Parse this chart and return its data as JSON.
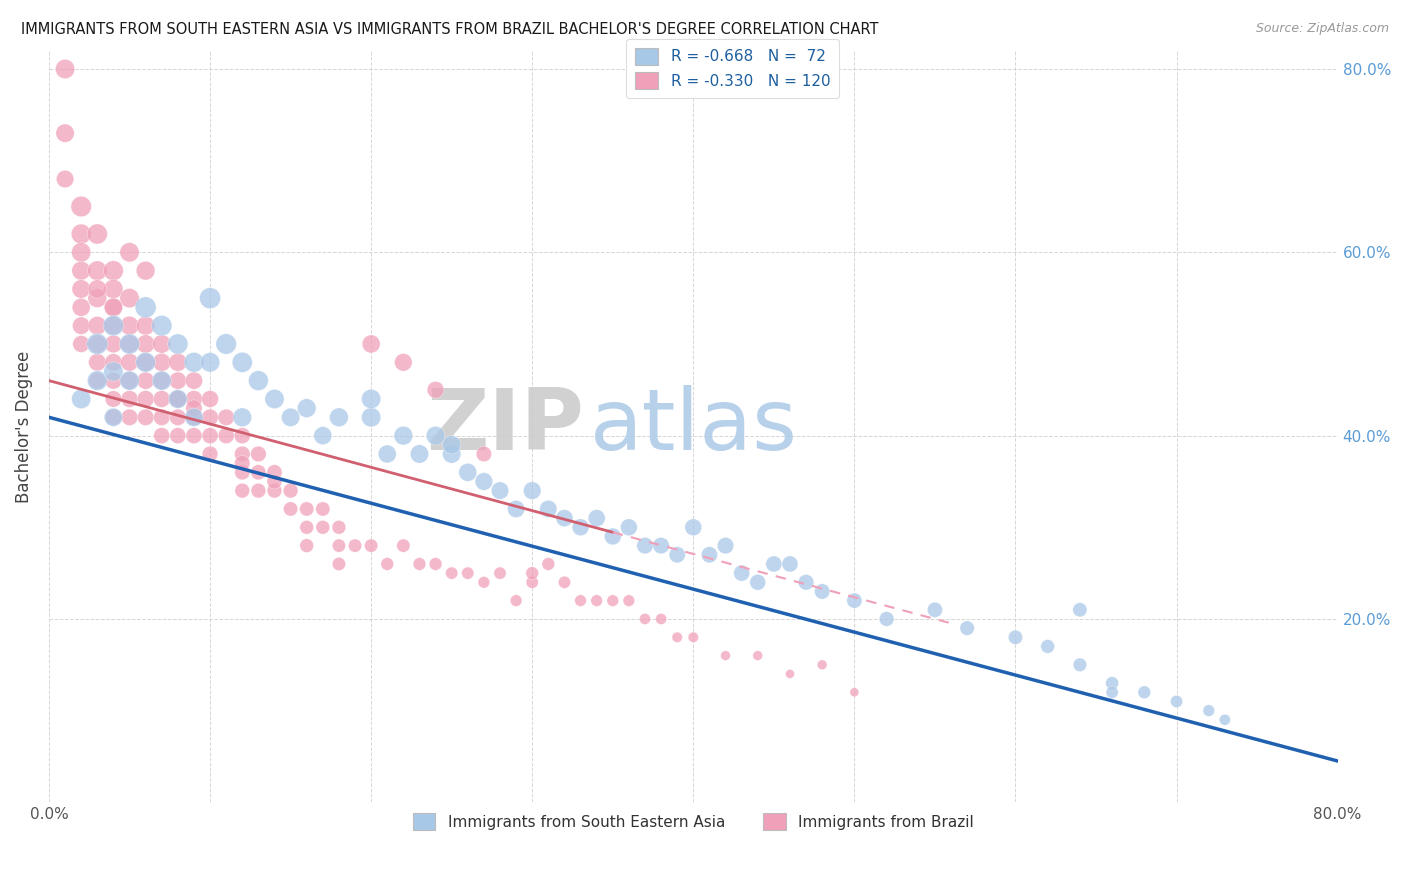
{
  "title": "IMMIGRANTS FROM SOUTH EASTERN ASIA VS IMMIGRANTS FROM BRAZIL BACHELOR'S DEGREE CORRELATION CHART",
  "source": "Source: ZipAtlas.com",
  "ylabel": "Bachelor's Degree",
  "watermark_zip": "ZIP",
  "watermark_atlas": "atlas",
  "legend_blue_label": "R = -0.668   N =  72",
  "legend_pink_label": "R = -0.330   N = 120",
  "legend_label_blue": "Immigrants from South Eastern Asia",
  "legend_label_pink": "Immigrants from Brazil",
  "blue_color": "#A8C8E8",
  "pink_color": "#F0A0B8",
  "trendline_blue_color": "#2060B0",
  "trendline_pink_solid_color": "#D06070",
  "trendline_pink_dash_color": "#F0A0B8",
  "xlim": [
    0.0,
    0.8
  ],
  "ylim": [
    0.0,
    0.82
  ],
  "blue_x": [
    0.02,
    0.03,
    0.03,
    0.04,
    0.04,
    0.04,
    0.05,
    0.05,
    0.06,
    0.06,
    0.07,
    0.07,
    0.08,
    0.08,
    0.09,
    0.09,
    0.1,
    0.1,
    0.11,
    0.12,
    0.12,
    0.13,
    0.14,
    0.15,
    0.16,
    0.17,
    0.18,
    0.2,
    0.21,
    0.22,
    0.23,
    0.24,
    0.25,
    0.26,
    0.27,
    0.28,
    0.29,
    0.3,
    0.31,
    0.32,
    0.33,
    0.34,
    0.35,
    0.36,
    0.37,
    0.38,
    0.39,
    0.4,
    0.41,
    0.42,
    0.43,
    0.44,
    0.45,
    0.46,
    0.47,
    0.48,
    0.5,
    0.52,
    0.55,
    0.57,
    0.6,
    0.62,
    0.64,
    0.66,
    0.68,
    0.7,
    0.72,
    0.73,
    0.64,
    0.66,
    0.2,
    0.25
  ],
  "blue_y": [
    0.44,
    0.5,
    0.46,
    0.52,
    0.47,
    0.42,
    0.5,
    0.46,
    0.54,
    0.48,
    0.52,
    0.46,
    0.5,
    0.44,
    0.48,
    0.42,
    0.55,
    0.48,
    0.5,
    0.48,
    0.42,
    0.46,
    0.44,
    0.42,
    0.43,
    0.4,
    0.42,
    0.42,
    0.38,
    0.4,
    0.38,
    0.4,
    0.38,
    0.36,
    0.35,
    0.34,
    0.32,
    0.34,
    0.32,
    0.31,
    0.3,
    0.31,
    0.29,
    0.3,
    0.28,
    0.28,
    0.27,
    0.3,
    0.27,
    0.28,
    0.25,
    0.24,
    0.26,
    0.26,
    0.24,
    0.23,
    0.22,
    0.2,
    0.21,
    0.19,
    0.18,
    0.17,
    0.15,
    0.13,
    0.12,
    0.11,
    0.1,
    0.09,
    0.21,
    0.12,
    0.44,
    0.39
  ],
  "blue_s": [
    55,
    65,
    58,
    62,
    55,
    50,
    60,
    55,
    65,
    58,
    62,
    55,
    60,
    52,
    58,
    50,
    65,
    56,
    62,
    60,
    52,
    58,
    55,
    50,
    52,
    48,
    52,
    55,
    48,
    52,
    50,
    52,
    50,
    48,
    46,
    45,
    44,
    46,
    44,
    43,
    42,
    43,
    42,
    42,
    40,
    40,
    39,
    42,
    39,
    40,
    38,
    37,
    38,
    38,
    36,
    35,
    34,
    32,
    34,
    31,
    30,
    28,
    27,
    25,
    24,
    22,
    20,
    18,
    30,
    22,
    55,
    50
  ],
  "pink_x": [
    0.01,
    0.01,
    0.01,
    0.02,
    0.02,
    0.02,
    0.02,
    0.02,
    0.02,
    0.02,
    0.02,
    0.03,
    0.03,
    0.03,
    0.03,
    0.03,
    0.03,
    0.03,
    0.04,
    0.04,
    0.04,
    0.04,
    0.04,
    0.04,
    0.04,
    0.04,
    0.04,
    0.05,
    0.05,
    0.05,
    0.05,
    0.05,
    0.05,
    0.05,
    0.06,
    0.06,
    0.06,
    0.06,
    0.06,
    0.06,
    0.07,
    0.07,
    0.07,
    0.07,
    0.07,
    0.07,
    0.08,
    0.08,
    0.08,
    0.08,
    0.08,
    0.09,
    0.09,
    0.09,
    0.09,
    0.1,
    0.1,
    0.1,
    0.1,
    0.11,
    0.11,
    0.12,
    0.12,
    0.12,
    0.12,
    0.13,
    0.13,
    0.13,
    0.14,
    0.14,
    0.15,
    0.15,
    0.16,
    0.16,
    0.17,
    0.17,
    0.18,
    0.18,
    0.19,
    0.2,
    0.21,
    0.22,
    0.23,
    0.24,
    0.25,
    0.26,
    0.27,
    0.28,
    0.29,
    0.3,
    0.31,
    0.32,
    0.33,
    0.34,
    0.35,
    0.36,
    0.37,
    0.38,
    0.39,
    0.4,
    0.42,
    0.44,
    0.46,
    0.48,
    0.5,
    0.05,
    0.06,
    0.03,
    0.04,
    0.08,
    0.09,
    0.12,
    0.14,
    0.16,
    0.18,
    0.2,
    0.22,
    0.24,
    0.27,
    0.3
  ],
  "pink_y": [
    0.8,
    0.73,
    0.68,
    0.65,
    0.62,
    0.6,
    0.58,
    0.56,
    0.54,
    0.52,
    0.5,
    0.62,
    0.58,
    0.55,
    0.52,
    0.5,
    0.48,
    0.46,
    0.58,
    0.56,
    0.54,
    0.52,
    0.5,
    0.48,
    0.46,
    0.44,
    0.42,
    0.55,
    0.52,
    0.5,
    0.48,
    0.46,
    0.44,
    0.42,
    0.52,
    0.5,
    0.48,
    0.46,
    0.44,
    0.42,
    0.5,
    0.48,
    0.46,
    0.44,
    0.42,
    0.4,
    0.48,
    0.46,
    0.44,
    0.42,
    0.4,
    0.46,
    0.44,
    0.42,
    0.4,
    0.44,
    0.42,
    0.4,
    0.38,
    0.42,
    0.4,
    0.4,
    0.38,
    0.36,
    0.34,
    0.38,
    0.36,
    0.34,
    0.36,
    0.34,
    0.34,
    0.32,
    0.32,
    0.3,
    0.32,
    0.3,
    0.3,
    0.28,
    0.28,
    0.28,
    0.26,
    0.28,
    0.26,
    0.26,
    0.25,
    0.25,
    0.24,
    0.25,
    0.22,
    0.24,
    0.26,
    0.24,
    0.22,
    0.22,
    0.22,
    0.22,
    0.2,
    0.2,
    0.18,
    0.18,
    0.16,
    0.16,
    0.14,
    0.15,
    0.12,
    0.6,
    0.58,
    0.56,
    0.54,
    0.44,
    0.43,
    0.37,
    0.35,
    0.28,
    0.26,
    0.5,
    0.48,
    0.45,
    0.38,
    0.25
  ],
  "pink_s": [
    55,
    50,
    45,
    62,
    58,
    55,
    52,
    50,
    48,
    45,
    42,
    60,
    56,
    52,
    50,
    48,
    45,
    42,
    58,
    54,
    50,
    48,
    46,
    44,
    42,
    40,
    38,
    55,
    52,
    48,
    46,
    44,
    42,
    40,
    52,
    50,
    46,
    44,
    42,
    40,
    50,
    48,
    44,
    42,
    40,
    38,
    48,
    44,
    42,
    40,
    38,
    44,
    42,
    40,
    38,
    42,
    40,
    38,
    36,
    40,
    38,
    38,
    36,
    34,
    32,
    36,
    34,
    32,
    34,
    32,
    32,
    30,
    30,
    28,
    30,
    28,
    28,
    26,
    26,
    26,
    24,
    26,
    24,
    24,
    22,
    22,
    20,
    22,
    20,
    22,
    24,
    22,
    20,
    20,
    20,
    20,
    18,
    18,
    16,
    16,
    14,
    14,
    12,
    14,
    12,
    55,
    52,
    50,
    48,
    42,
    40,
    35,
    33,
    28,
    26,
    48,
    46,
    42,
    35,
    24
  ]
}
